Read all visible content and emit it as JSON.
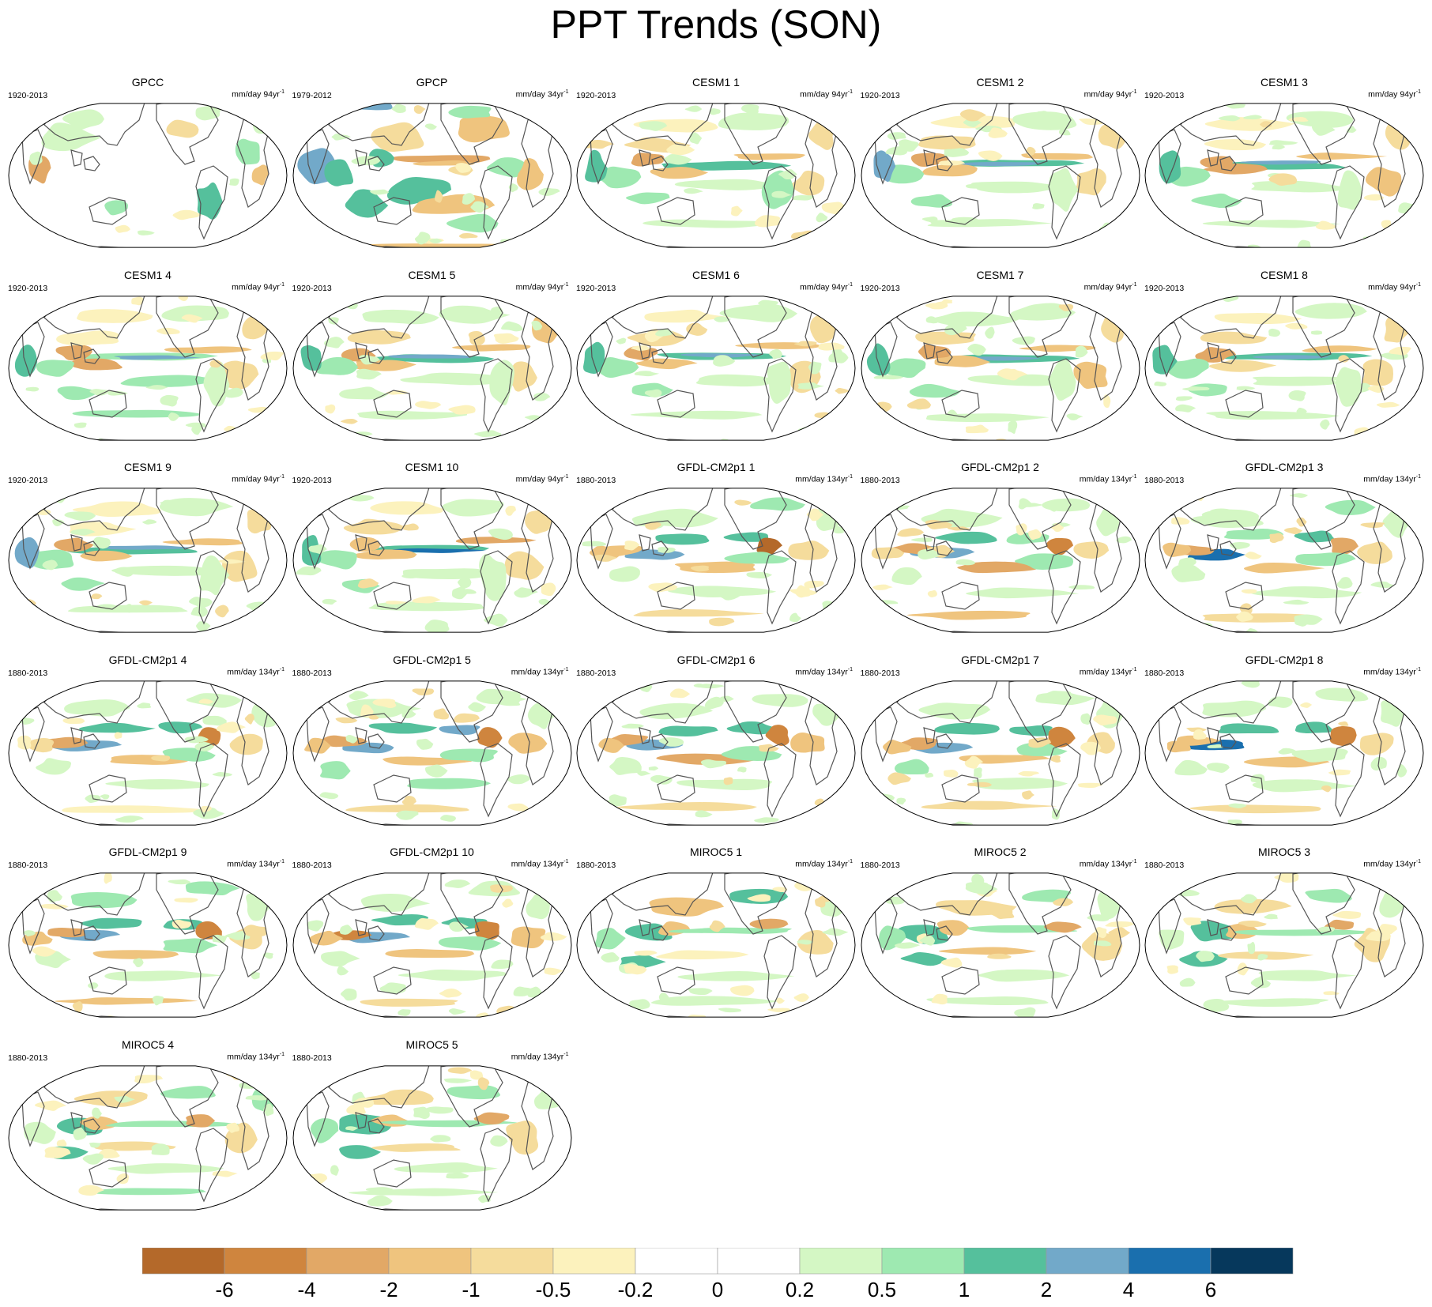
{
  "chart_data": {
    "type": "map-panels",
    "title": "PPT Trends (SON)",
    "units_label": "mm/day",
    "colorbar": {
      "levels": [
        "-6",
        "-4",
        "-2",
        "-1",
        "-0.5",
        "-0.2",
        "0",
        "0.2",
        "0.5",
        "1",
        "2",
        "4",
        "6"
      ],
      "colors": [
        "#b4692a",
        "#cf853e",
        "#e2a866",
        "#efc47e",
        "#f5dc9c",
        "#fcf2bd",
        "#ffffff",
        "#ffffff",
        "#d4f7c4",
        "#9ee9b1",
        "#55c09c",
        "#72a9c9",
        "#1a6fae",
        "#06385c"
      ]
    },
    "panels": [
      {
        "name": "GPCC",
        "period": "1920-2013",
        "trend": "94yr",
        "pattern": "gpcc"
      },
      {
        "name": "GPCP",
        "period": "1979-2012",
        "trend": "34yr",
        "pattern": "gpcp"
      },
      {
        "name": "CESM1 1",
        "period": "1920-2013",
        "trend": "94yr",
        "pattern": "cesm"
      },
      {
        "name": "CESM1 2",
        "period": "1920-2013",
        "trend": "94yr",
        "pattern": "cesm"
      },
      {
        "name": "CESM1 3",
        "period": "1920-2013",
        "trend": "94yr",
        "pattern": "cesm"
      },
      {
        "name": "CESM1 4",
        "period": "1920-2013",
        "trend": "94yr",
        "pattern": "cesm"
      },
      {
        "name": "CESM1 5",
        "period": "1920-2013",
        "trend": "94yr",
        "pattern": "cesm"
      },
      {
        "name": "CESM1 6",
        "period": "1920-2013",
        "trend": "94yr",
        "pattern": "cesm"
      },
      {
        "name": "CESM1 7",
        "period": "1920-2013",
        "trend": "94yr",
        "pattern": "cesm"
      },
      {
        "name": "CESM1 8",
        "period": "1920-2013",
        "trend": "94yr",
        "pattern": "cesm"
      },
      {
        "name": "CESM1 9",
        "period": "1920-2013",
        "trend": "94yr",
        "pattern": "cesm"
      },
      {
        "name": "CESM1 10",
        "period": "1920-2013",
        "trend": "94yr",
        "pattern": "cesm"
      },
      {
        "name": "GFDL-CM2p1 1",
        "period": "1880-2013",
        "trend": "134yr",
        "pattern": "gfdl"
      },
      {
        "name": "GFDL-CM2p1 2",
        "period": "1880-2013",
        "trend": "134yr",
        "pattern": "gfdl"
      },
      {
        "name": "GFDL-CM2p1 3",
        "period": "1880-2013",
        "trend": "134yr",
        "pattern": "gfdl"
      },
      {
        "name": "GFDL-CM2p1 4",
        "period": "1880-2013",
        "trend": "134yr",
        "pattern": "gfdl"
      },
      {
        "name": "GFDL-CM2p1 5",
        "period": "1880-2013",
        "trend": "134yr",
        "pattern": "gfdl"
      },
      {
        "name": "GFDL-CM2p1 6",
        "period": "1880-2013",
        "trend": "134yr",
        "pattern": "gfdl"
      },
      {
        "name": "GFDL-CM2p1 7",
        "period": "1880-2013",
        "trend": "134yr",
        "pattern": "gfdl"
      },
      {
        "name": "GFDL-CM2p1 8",
        "period": "1880-2013",
        "trend": "134yr",
        "pattern": "gfdl"
      },
      {
        "name": "GFDL-CM2p1 9",
        "period": "1880-2013",
        "trend": "134yr",
        "pattern": "gfdl"
      },
      {
        "name": "GFDL-CM2p1 10",
        "period": "1880-2013",
        "trend": "134yr",
        "pattern": "gfdl"
      },
      {
        "name": "MIROC5 1",
        "period": "1880-2013",
        "trend": "134yr",
        "pattern": "miroc"
      },
      {
        "name": "MIROC5 2",
        "period": "1880-2013",
        "trend": "134yr",
        "pattern": "miroc"
      },
      {
        "name": "MIROC5 3",
        "period": "1880-2013",
        "trend": "134yr",
        "pattern": "miroc"
      },
      {
        "name": "MIROC5 4",
        "period": "1880-2013",
        "trend": "134yr",
        "pattern": "miroc"
      },
      {
        "name": "MIROC5 5",
        "period": "1880-2013",
        "trend": "134yr",
        "pattern": "miroc"
      }
    ]
  }
}
